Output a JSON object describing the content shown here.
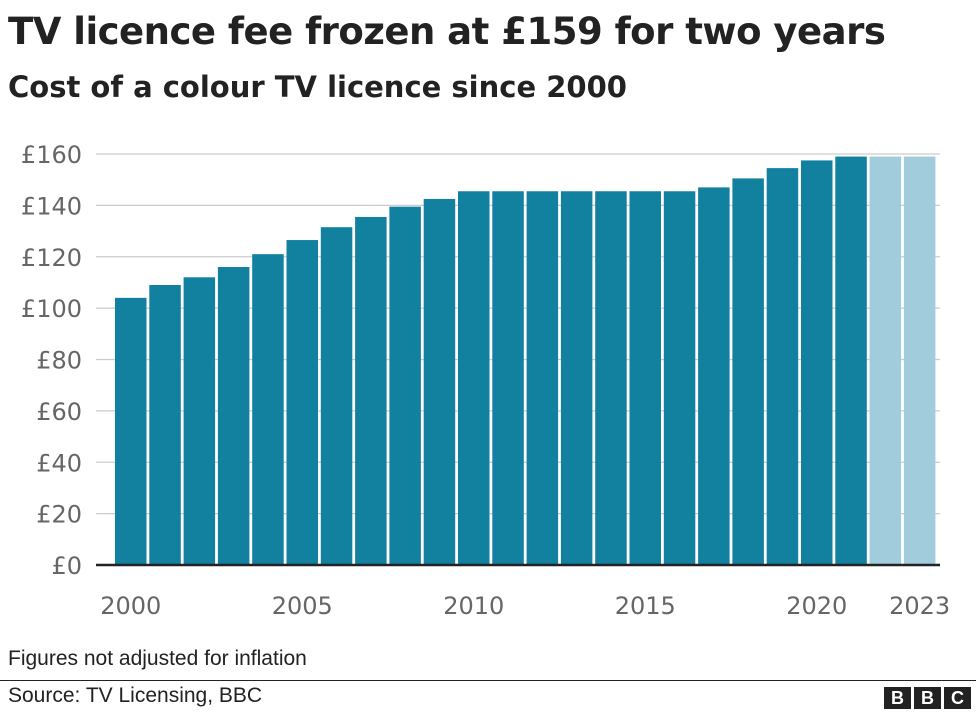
{
  "title": "TV licence fee frozen at £159 for two years",
  "subtitle": "Cost of a colour TV licence since 2000",
  "note": "Figures not adjusted for inflation",
  "source": "Source: TV Licensing, BBC",
  "logo": [
    "B",
    "B",
    "C"
  ],
  "colors": {
    "actual": "#12809f",
    "frozen": "#a0ccdb",
    "grid": "#cccccc",
    "axis": "#222222"
  },
  "chart_data": {
    "type": "bar",
    "categories": [
      2000,
      2001,
      2002,
      2003,
      2004,
      2005,
      2006,
      2007,
      2008,
      2009,
      2010,
      2011,
      2012,
      2013,
      2014,
      2015,
      2016,
      2017,
      2018,
      2019,
      2020,
      2021,
      2022,
      2023
    ],
    "values": [
      104,
      109,
      112,
      116,
      121,
      126.5,
      131.5,
      135.5,
      139.5,
      142.5,
      145.5,
      145.5,
      145.5,
      145.5,
      145.5,
      145.5,
      145.5,
      147,
      150.5,
      154.5,
      157.5,
      159,
      159,
      159
    ],
    "frozen_from": 2022,
    "x_tick_labels": [
      "2000",
      "2005",
      "2010",
      "2015",
      "2020",
      "2023"
    ],
    "y_ticks": [
      0,
      20,
      40,
      60,
      80,
      100,
      120,
      140,
      160
    ],
    "y_tick_prefix": "£",
    "ylim": [
      0,
      160
    ],
    "grid": true,
    "xlabel": "",
    "ylabel": ""
  }
}
